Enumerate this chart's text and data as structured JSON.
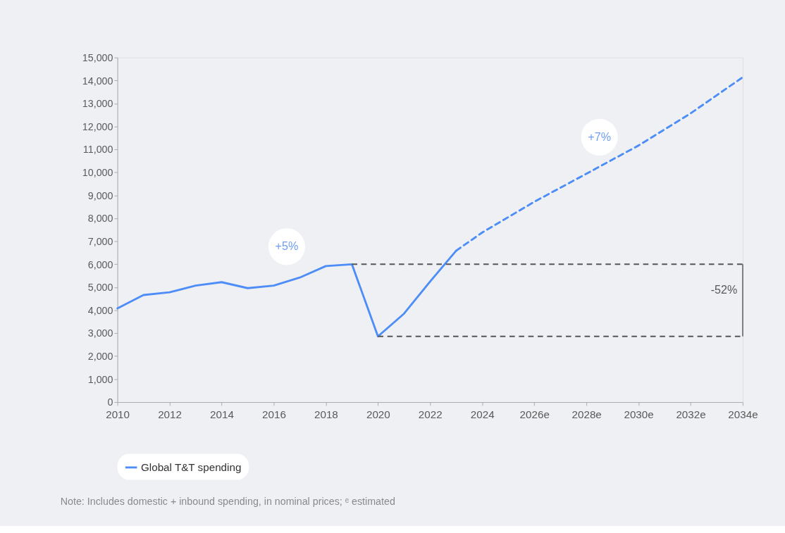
{
  "chart_data": {
    "type": "line",
    "x": [
      2010,
      2011,
      2012,
      2013,
      2014,
      2015,
      2016,
      2017,
      2018,
      2019,
      2020,
      2021,
      2022,
      2023
    ],
    "series": [
      {
        "name": "Global T&T spending",
        "color": "#4d8df7",
        "line_style": "solid",
        "values": [
          4080,
          4660,
          4780,
          5070,
          5220,
          4960,
          5070,
          5420,
          5920,
          6000,
          2860,
          3850,
          5250,
          6590
        ]
      },
      {
        "color": "#4d8df7",
        "line_style": "dashed",
        "x": [
          2023,
          2024,
          2026,
          2028,
          2030,
          2032,
          2034
        ],
        "values": [
          6590,
          7380,
          8720,
          9940,
          11170,
          12570,
          14140
        ]
      }
    ],
    "xlim": [
      2010,
      2034
    ],
    "xticks": [
      2010,
      2012,
      2014,
      2016,
      2018,
      2020,
      2022,
      2024,
      {
        "value": 2026,
        "label": "2026e"
      },
      {
        "value": 2028,
        "label": "2028e"
      },
      {
        "value": 2030,
        "label": "2030e"
      },
      {
        "value": 2032,
        "label": "2032e"
      },
      {
        "value": 2034,
        "label": "2034e"
      }
    ],
    "ylim": [
      0,
      15000
    ],
    "yticks": [
      0,
      {
        "value": 1000,
        "label": "1,000"
      },
      {
        "value": 2000,
        "label": "2,000"
      },
      {
        "value": 3000,
        "label": "3,000"
      },
      {
        "value": 4000,
        "label": "4,000"
      },
      {
        "value": 5000,
        "label": "5,000"
      },
      {
        "value": 6000,
        "label": "6,000"
      },
      {
        "value": 7000,
        "label": "7,000"
      },
      {
        "value": 8000,
        "label": "8,000"
      },
      {
        "value": 9000,
        "label": "9,000"
      },
      {
        "value": 10000,
        "label": "10,000"
      },
      {
        "value": 11000,
        "label": "11,000"
      },
      {
        "value": 12000,
        "label": "12,000"
      },
      {
        "value": 13000,
        "label": "13,000"
      },
      {
        "value": 14000,
        "label": "14,000"
      },
      {
        "value": 15000,
        "label": "15,000"
      }
    ],
    "ref_lines": [
      {
        "axis": "y",
        "value": 6000,
        "color": "#555555",
        "line_style": "dashed"
      },
      {
        "axis": "y",
        "value": 2860,
        "color": "#555555",
        "line_style": "dashed"
      }
    ],
    "annotations": [
      "+5%",
      "+7%",
      "-52%",
      "Note: Includes domestic + inbound spending, in nominal prices; ᵉ estimated"
    ],
    "legend": "bottom",
    "grid": false
  }
}
